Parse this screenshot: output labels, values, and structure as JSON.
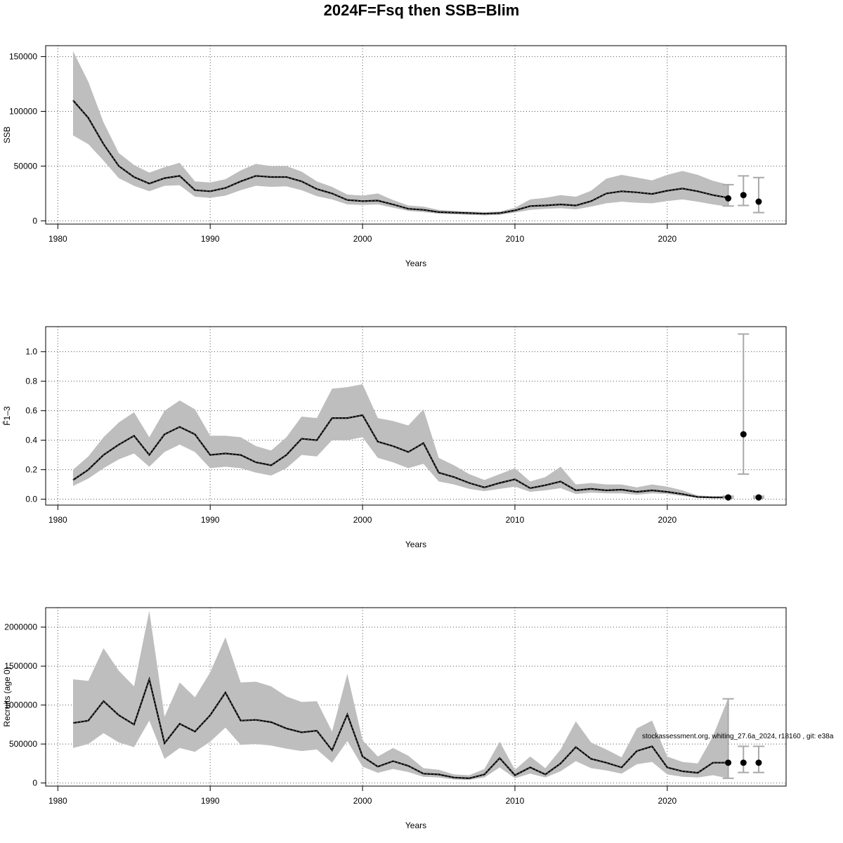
{
  "title": "2024F=Fsq then SSB=Blim",
  "footer_note": "stockassessment.org, whiting_27.6a_2024, r18160 , git: e38a",
  "colors": {
    "band": "#bebebe",
    "line": "#000000",
    "grid": "#555555",
    "errorbar": "#a9a9a9"
  },
  "chart_data": [
    {
      "type": "line",
      "xlabel": "Years",
      "ylabel": "SSB",
      "xlim": [
        1979.2,
        2027.8
      ],
      "ylim": [
        -3000,
        160000
      ],
      "xticks": [
        1980,
        1990,
        2000,
        2010,
        2020
      ],
      "yticks": [
        0,
        50000,
        100000,
        150000
      ],
      "grid": true,
      "x": [
        1981,
        1982,
        1983,
        1984,
        1985,
        1986,
        1987,
        1988,
        1989,
        1990,
        1991,
        1992,
        1993,
        1994,
        1995,
        1996,
        1997,
        1998,
        1999,
        2000,
        2001,
        2002,
        2003,
        2004,
        2005,
        2006,
        2007,
        2008,
        2009,
        2010,
        2011,
        2012,
        2013,
        2014,
        2015,
        2016,
        2017,
        2018,
        2019,
        2020,
        2021,
        2022,
        2023,
        2024
      ],
      "estimate": [
        110000,
        94000,
        70000,
        50000,
        40000,
        34000,
        39000,
        41000,
        28000,
        27000,
        30000,
        36000,
        41000,
        40000,
        40000,
        36000,
        29000,
        25000,
        19000,
        18000,
        18500,
        15000,
        11000,
        10000,
        8000,
        7500,
        7000,
        6500,
        7000,
        9500,
        13500,
        14000,
        15000,
        14000,
        18000,
        25000,
        27000,
        26000,
        24500,
        27500,
        29500,
        27000,
        23500,
        21000
      ],
      "lower": [
        78000,
        70000,
        55000,
        39000,
        32000,
        27000,
        32000,
        32500,
        22000,
        21000,
        23000,
        28000,
        32000,
        31000,
        31500,
        28000,
        22500,
        19500,
        15000,
        14500,
        15000,
        12000,
        9000,
        8000,
        6500,
        6000,
        5500,
        5000,
        5500,
        7500,
        10000,
        11000,
        11500,
        10500,
        13000,
        16000,
        17500,
        16500,
        16000,
        18000,
        19500,
        17500,
        15000,
        13000
      ],
      "upper": [
        155000,
        127000,
        90000,
        62000,
        51000,
        44000,
        49000,
        53000,
        36000,
        35000,
        38000,
        46000,
        52000,
        50000,
        50000,
        45000,
        36000,
        31000,
        24000,
        23000,
        25000,
        19000,
        14000,
        13000,
        10000,
        9000,
        8500,
        8000,
        8500,
        12000,
        19500,
        21000,
        23500,
        22000,
        27500,
        38500,
        42000,
        39500,
        37000,
        42000,
        45500,
        42000,
        36500,
        33000
      ],
      "projection": {
        "x": [
          2024,
          2025,
          2026
        ],
        "estimate": [
          20500,
          23500,
          17500
        ],
        "lower": [
          13500,
          14000,
          7500
        ],
        "upper": [
          33000,
          41000,
          39500
        ]
      }
    },
    {
      "type": "line",
      "xlabel": "Years",
      "ylabel": "F̄1–3",
      "xlim": [
        1979.2,
        2027.8
      ],
      "ylim": [
        -0.04,
        1.17
      ],
      "xticks": [
        1980,
        1990,
        2000,
        2010,
        2020
      ],
      "yticks": [
        0.0,
        0.2,
        0.4,
        0.6,
        0.8,
        1.0
      ],
      "ytick_labels": [
        "0.0",
        "0.2",
        "0.4",
        "0.6",
        "0.8",
        "1.0"
      ],
      "grid": true,
      "x": [
        1981,
        1982,
        1983,
        1984,
        1985,
        1986,
        1987,
        1988,
        1989,
        1990,
        1991,
        1992,
        1993,
        1994,
        1995,
        1996,
        1997,
        1998,
        1999,
        2000,
        2001,
        2002,
        2003,
        2004,
        2005,
        2006,
        2007,
        2008,
        2009,
        2010,
        2011,
        2012,
        2013,
        2014,
        2015,
        2016,
        2017,
        2018,
        2019,
        2020,
        2021,
        2022,
        2023,
        2024
      ],
      "estimate": [
        0.13,
        0.2,
        0.3,
        0.37,
        0.43,
        0.3,
        0.44,
        0.49,
        0.44,
        0.3,
        0.31,
        0.3,
        0.25,
        0.23,
        0.3,
        0.41,
        0.4,
        0.55,
        0.55,
        0.57,
        0.39,
        0.36,
        0.32,
        0.38,
        0.18,
        0.15,
        0.11,
        0.08,
        0.11,
        0.135,
        0.075,
        0.095,
        0.12,
        0.06,
        0.07,
        0.06,
        0.065,
        0.05,
        0.06,
        0.05,
        0.035,
        0.015,
        0.012,
        0.012
      ],
      "lower": [
        0.09,
        0.14,
        0.21,
        0.27,
        0.31,
        0.22,
        0.32,
        0.37,
        0.32,
        0.21,
        0.22,
        0.21,
        0.18,
        0.16,
        0.21,
        0.3,
        0.29,
        0.4,
        0.4,
        0.42,
        0.28,
        0.25,
        0.21,
        0.24,
        0.12,
        0.1,
        0.07,
        0.055,
        0.07,
        0.085,
        0.05,
        0.06,
        0.075,
        0.035,
        0.045,
        0.04,
        0.04,
        0.03,
        0.04,
        0.035,
        0.022,
        0.01,
        0.008,
        0.008
      ],
      "upper": [
        0.2,
        0.29,
        0.42,
        0.52,
        0.59,
        0.42,
        0.6,
        0.67,
        0.61,
        0.43,
        0.43,
        0.42,
        0.36,
        0.33,
        0.42,
        0.56,
        0.55,
        0.75,
        0.76,
        0.78,
        0.55,
        0.53,
        0.5,
        0.61,
        0.28,
        0.23,
        0.17,
        0.13,
        0.17,
        0.21,
        0.12,
        0.15,
        0.22,
        0.1,
        0.11,
        0.1,
        0.1,
        0.08,
        0.1,
        0.085,
        0.06,
        0.025,
        0.02,
        0.02
      ],
      "projection": {
        "x": [
          2024,
          2025,
          2026
        ],
        "estimate": [
          0.012,
          0.44,
          0.012
        ],
        "lower": [
          0.008,
          0.17,
          0.008
        ],
        "upper": [
          0.02,
          1.12,
          0.02
        ]
      }
    },
    {
      "type": "line",
      "xlabel": "Years",
      "ylabel": "Recruits (age 0)",
      "xlim": [
        1979.2,
        2027.8
      ],
      "ylim": [
        -40000,
        2250000
      ],
      "xticks": [
        1980,
        1990,
        2000,
        2010,
        2020
      ],
      "yticks": [
        0,
        500000,
        1000000,
        1500000,
        2000000
      ],
      "grid": true,
      "x": [
        1981,
        1982,
        1983,
        1984,
        1985,
        1986,
        1987,
        1988,
        1989,
        1990,
        1991,
        1992,
        1993,
        1994,
        1995,
        1996,
        1997,
        1998,
        1999,
        2000,
        2001,
        2002,
        2003,
        2004,
        2005,
        2006,
        2007,
        2008,
        2009,
        2010,
        2011,
        2012,
        2013,
        2014,
        2015,
        2016,
        2017,
        2018,
        2019,
        2020,
        2021,
        2022,
        2023,
        2024
      ],
      "estimate": [
        770000,
        800000,
        1050000,
        870000,
        750000,
        1330000,
        510000,
        760000,
        660000,
        870000,
        1160000,
        800000,
        810000,
        780000,
        700000,
        650000,
        670000,
        420000,
        880000,
        340000,
        210000,
        280000,
        220000,
        120000,
        110000,
        70000,
        60000,
        110000,
        320000,
        100000,
        200000,
        110000,
        250000,
        460000,
        310000,
        260000,
        200000,
        410000,
        470000,
        200000,
        150000,
        130000,
        260000,
        260000
      ],
      "lower": [
        450000,
        500000,
        640000,
        520000,
        460000,
        800000,
        310000,
        450000,
        400000,
        530000,
        710000,
        490000,
        500000,
        480000,
        440000,
        410000,
        430000,
        260000,
        540000,
        210000,
        130000,
        180000,
        140000,
        80000,
        70000,
        45000,
        40000,
        70000,
        200000,
        60000,
        120000,
        70000,
        150000,
        280000,
        190000,
        160000,
        120000,
        240000,
        270000,
        110000,
        80000,
        70000,
        100000,
        60000
      ],
      "upper": [
        1330000,
        1310000,
        1730000,
        1440000,
        1240000,
        2210000,
        850000,
        1290000,
        1100000,
        1420000,
        1870000,
        1290000,
        1300000,
        1240000,
        1110000,
        1040000,
        1050000,
        660000,
        1400000,
        550000,
        340000,
        450000,
        350000,
        190000,
        170000,
        110000,
        100000,
        180000,
        530000,
        170000,
        340000,
        190000,
        430000,
        790000,
        520000,
        430000,
        330000,
        700000,
        800000,
        340000,
        270000,
        250000,
        600000,
        1090000
      ],
      "projection": {
        "x": [
          2024,
          2025,
          2026
        ],
        "estimate": [
          260000,
          260000,
          260000
        ],
        "lower": [
          60000,
          135000,
          135000
        ],
        "upper": [
          1080000,
          470000,
          470000
        ]
      }
    }
  ]
}
